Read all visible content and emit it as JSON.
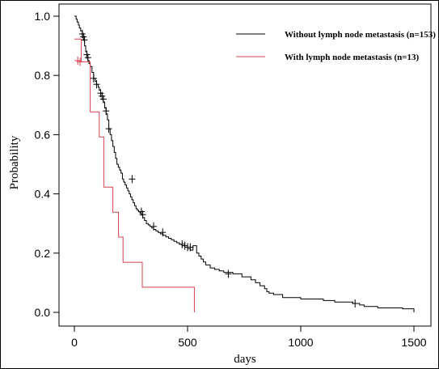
{
  "chart_data": {
    "type": "line",
    "subtype": "kaplan-meier",
    "xlabel": "days",
    "ylabel": "Probability",
    "xlim": [
      -50,
      1550
    ],
    "ylim": [
      -0.04,
      1.02
    ],
    "xticks": [
      0,
      500,
      1000,
      1500
    ],
    "xtick_labels": [
      "0",
      "500",
      "1000",
      "1500"
    ],
    "yticks": [
      0.0,
      0.2,
      0.4,
      0.6,
      0.8,
      1.0
    ],
    "ytick_labels": [
      "0.0",
      "0.2",
      "0.4",
      "0.6",
      "0.8",
      "1.0"
    ],
    "grid": false,
    "legend_position": "top-right",
    "series": [
      {
        "name": "Without lymph node metastasis (n=153)",
        "color": "#000000",
        "x": [
          0,
          8,
          12,
          18,
          22,
          28,
          35,
          40,
          45,
          50,
          55,
          60,
          65,
          70,
          78,
          85,
          92,
          98,
          105,
          110,
          116,
          122,
          128,
          134,
          140,
          146,
          152,
          158,
          164,
          170,
          176,
          182,
          188,
          194,
          200,
          206,
          212,
          218,
          224,
          230,
          236,
          242,
          248,
          254,
          260,
          266,
          272,
          278,
          284,
          290,
          296,
          302,
          310,
          318,
          326,
          334,
          342,
          350,
          360,
          370,
          380,
          392,
          404,
          416,
          428,
          440,
          452,
          464,
          476,
          488,
          500,
          512,
          524,
          540,
          550,
          560,
          570,
          580,
          600,
          620,
          640,
          660,
          700,
          740,
          780,
          800,
          820,
          840,
          850,
          860,
          880,
          920,
          1000,
          1100,
          1150,
          1230,
          1260,
          1280,
          1340,
          1450,
          1500
        ],
        "y": [
          1.0,
          0.99,
          0.98,
          0.97,
          0.96,
          0.95,
          0.94,
          0.92,
          0.9,
          0.88,
          0.86,
          0.85,
          0.84,
          0.83,
          0.81,
          0.79,
          0.78,
          0.77,
          0.76,
          0.75,
          0.74,
          0.73,
          0.71,
          0.69,
          0.67,
          0.65,
          0.62,
          0.6,
          0.58,
          0.56,
          0.54,
          0.52,
          0.5,
          0.49,
          0.48,
          0.47,
          0.45,
          0.44,
          0.43,
          0.42,
          0.41,
          0.4,
          0.39,
          0.38,
          0.37,
          0.36,
          0.35,
          0.345,
          0.34,
          0.335,
          0.33,
          0.32,
          0.31,
          0.3,
          0.295,
          0.29,
          0.285,
          0.28,
          0.275,
          0.27,
          0.265,
          0.26,
          0.255,
          0.25,
          0.245,
          0.24,
          0.235,
          0.23,
          0.225,
          0.22,
          0.215,
          0.21,
          0.225,
          0.2,
          0.19,
          0.18,
          0.17,
          0.16,
          0.15,
          0.145,
          0.14,
          0.135,
          0.13,
          0.12,
          0.11,
          0.1,
          0.09,
          0.08,
          0.07,
          0.065,
          0.06,
          0.05,
          0.045,
          0.04,
          0.035,
          0.03,
          0.025,
          0.02,
          0.015,
          0.012,
          0.0
        ],
        "censor_x": [
          35,
          40,
          45,
          55,
          60,
          85,
          98,
          116,
          122,
          128,
          140,
          152,
          255,
          296,
          302,
          350,
          390,
          476,
          488,
          500,
          512,
          680,
          1240
        ],
        "censor_y": [
          0.94,
          0.93,
          0.92,
          0.87,
          0.86,
          0.79,
          0.77,
          0.74,
          0.73,
          0.72,
          0.68,
          0.62,
          0.45,
          0.34,
          0.33,
          0.29,
          0.27,
          0.23,
          0.225,
          0.22,
          0.22,
          0.13,
          0.03
        ]
      },
      {
        "name": "With lymph node metastasis (n=13)",
        "color": "#d6404e",
        "x": [
          0,
          10,
          30,
          70,
          110,
          130,
          155,
          170,
          195,
          215,
          250,
          300,
          530,
          530
        ],
        "y": [
          0.923,
          0.923,
          0.846,
          0.677,
          0.592,
          0.423,
          0.423,
          0.338,
          0.254,
          0.169,
          0.169,
          0.085,
          0.085,
          0.0
        ],
        "censor_x": [
          15,
          25
        ],
        "censor_y": [
          0.85,
          0.846
        ]
      }
    ]
  }
}
